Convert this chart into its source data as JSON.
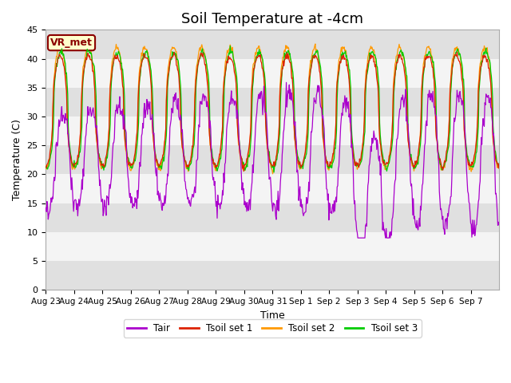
{
  "title": "Soil Temperature at -4cm",
  "xlabel": "Time",
  "ylabel": "Temperature (C)",
  "ylim": [
    0,
    45
  ],
  "annotation": "VR_met",
  "colors": {
    "Tair": "#aa00cc",
    "Tsoil1": "#dd2200",
    "Tsoil2": "#ff9900",
    "Tsoil3": "#00cc00"
  },
  "legend_labels": [
    "Tair",
    "Tsoil set 1",
    "Tsoil set 2",
    "Tsoil set 3"
  ],
  "n_days": 16,
  "title_fontsize": 13,
  "tick_dates": [
    "Aug 23",
    "Aug 24",
    "Aug 25",
    "Aug 26",
    "Aug 27",
    "Aug 28",
    "Aug 29",
    "Aug 30",
    "Aug 31",
    "Sep 1",
    "Sep 2",
    "Sep 3",
    "Sep 4",
    "Sep 5",
    "Sep 6",
    "Sep 7"
  ],
  "gray_band_color": "#e0e0e0",
  "white_band_color": "#f4f4f4"
}
